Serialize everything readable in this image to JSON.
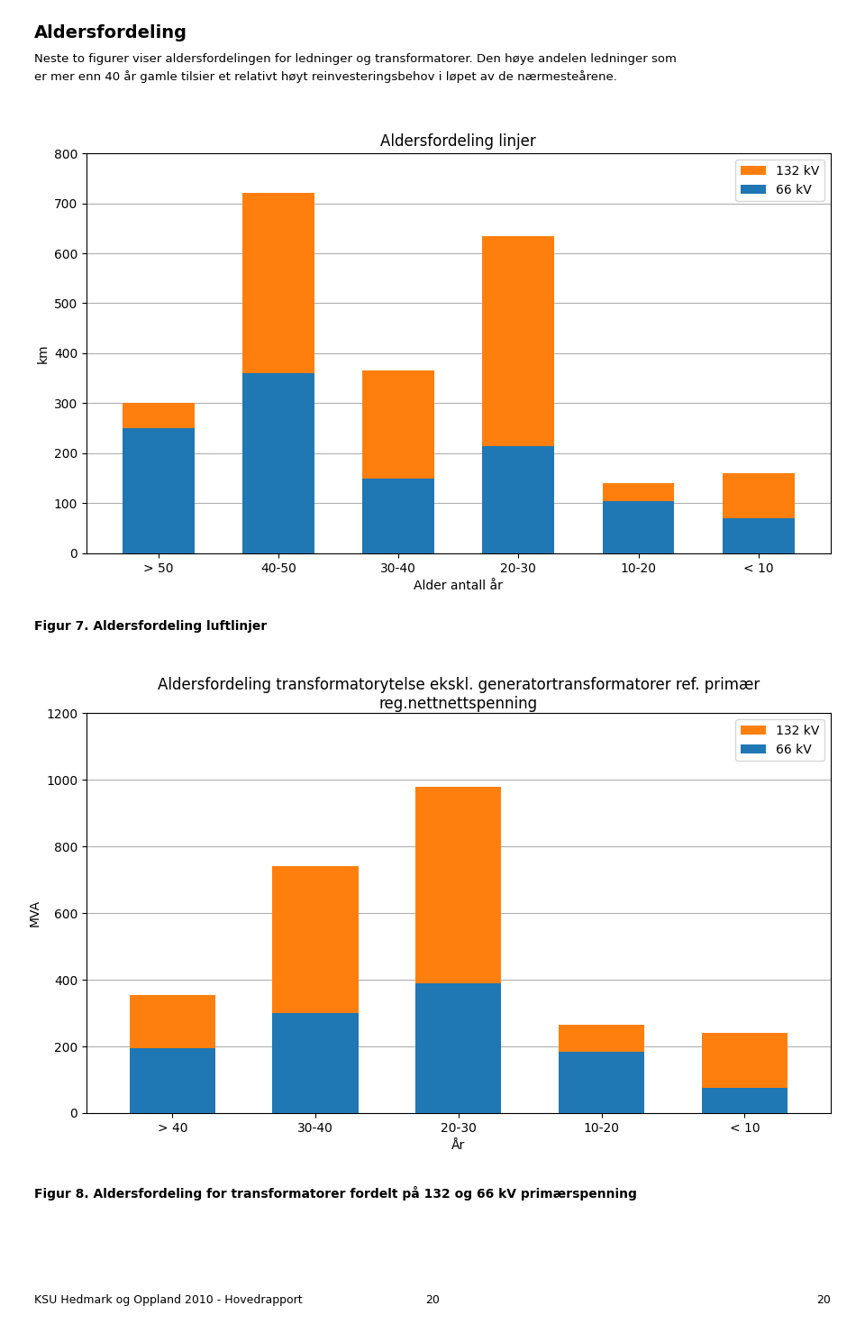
{
  "title": "Aldersfordeling",
  "subtitle": [
    "Neste to figurer viser aldersfordelingen for ledninger og transformatorer. Den høye andelen ledninger som",
    "er mer enn 40 år gamle tilsier et relativt høyt reinvesteringsbehov i løpet av de nærmesteårene."
  ],
  "footer": [
    "KSU Hedmark og Oppland 2010 - Hovedrapport",
    "20",
    "20"
  ],
  "chart_data": [
    {
      "type": "bar",
      "stacked": true,
      "grid": true,
      "legend": "upper right",
      "title": "Aldersfordeling linjer",
      "caption": "Figur 7. Aldersfordeling luftlinjer",
      "categories": [
        "> 50",
        "40-50",
        "30-40",
        "20-30",
        "10-20",
        "< 10"
      ],
      "xlabel": "Alder antall år",
      "ylabel": "km",
      "ylim": [
        0,
        800
      ],
      "yticks": [
        0,
        100,
        200,
        300,
        400,
        500,
        600,
        700,
        800
      ],
      "series": [
        {
          "name": "66 kV",
          "values": [
            250,
            360,
            150,
            215,
            105,
            70
          ]
        },
        {
          "name": "132 kV",
          "values": [
            50,
            360,
            215,
            420,
            35,
            90
          ]
        }
      ]
    },
    {
      "type": "bar",
      "stacked": true,
      "grid": true,
      "legend": "upper right",
      "title": "Aldersfordeling transformatorytelse ekskl. generatortransformatorer ref. primær\nreg.nettnettspenning",
      "caption": "Figur 8. Aldersfordeling for transformatorer fordelt på 132 og 66 kV primærspenning",
      "categories": [
        "> 40",
        "30-40",
        "20-30",
        "10-20",
        "< 10"
      ],
      "xlabel": "År",
      "ylabel": "MVA",
      "ylim": [
        0,
        1200
      ],
      "yticks": [
        0,
        200,
        400,
        600,
        800,
        1000,
        1200
      ],
      "series": [
        {
          "name": "66 kV",
          "values": [
            195,
            300,
            390,
            185,
            75
          ]
        },
        {
          "name": "132 kV",
          "values": [
            160,
            440,
            590,
            80,
            165
          ]
        }
      ]
    }
  ]
}
